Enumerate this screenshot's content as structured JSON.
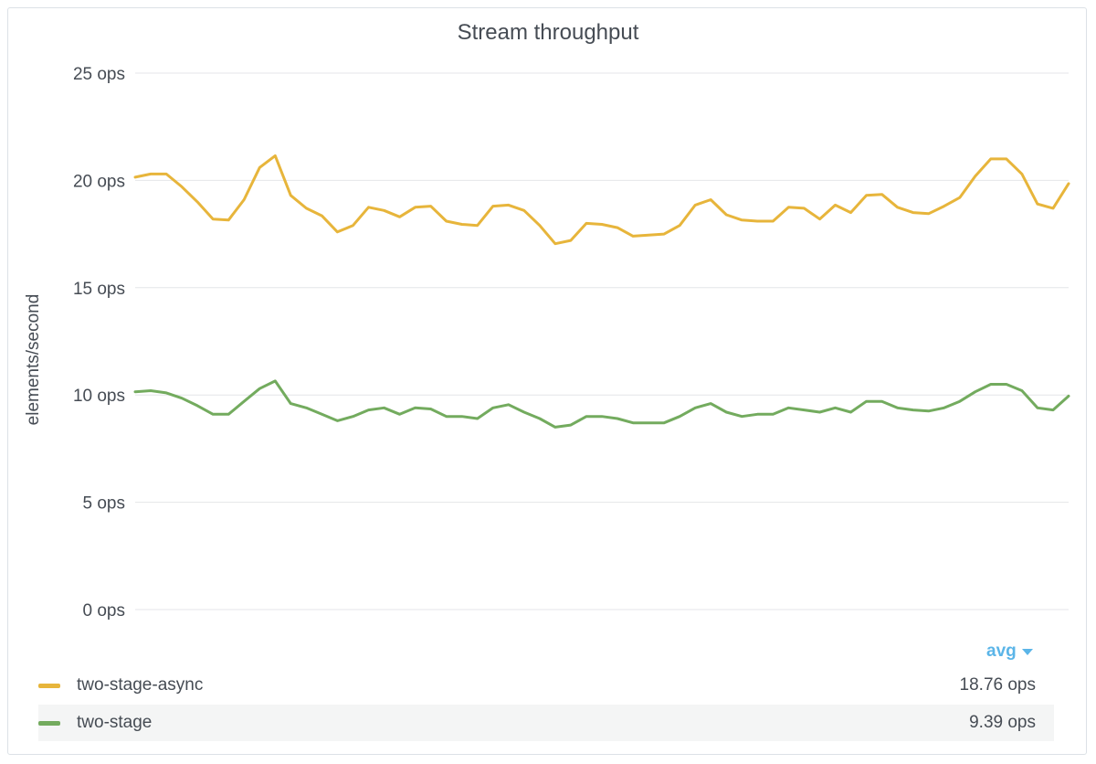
{
  "panel": {
    "title": "Stream throughput",
    "sort_label": "avg"
  },
  "colors": {
    "async": "#e7b53b",
    "sync": "#73ab5e",
    "grid": "#e4e6e8",
    "accent": "#5bb5e8"
  },
  "icons": {
    "sort": "caret-down-icon"
  },
  "chart_data": {
    "type": "line",
    "title": "Stream throughput",
    "xlabel": "",
    "ylabel": "elements/second",
    "ylim": [
      0,
      25
    ],
    "yticks": [
      "0 ops",
      "5 ops",
      "10 ops",
      "15 ops",
      "20 ops",
      "25 ops"
    ],
    "ytick_values": [
      0,
      5,
      10,
      15,
      20,
      25
    ],
    "grid": true,
    "legend_position": "bottom",
    "x": [
      0,
      1,
      2,
      3,
      4,
      5,
      6,
      7,
      8,
      9,
      10,
      11,
      12,
      13,
      14,
      15,
      16,
      17,
      18,
      19,
      20,
      21,
      22,
      23,
      24,
      25,
      26,
      27,
      28,
      29,
      30,
      31,
      32,
      33,
      34,
      35,
      36,
      37,
      38,
      39,
      40,
      41,
      42,
      43,
      44,
      45,
      46,
      47,
      48,
      49,
      50,
      51,
      52,
      53,
      54,
      55,
      56,
      57,
      58,
      59,
      60
    ],
    "series": [
      {
        "name": "two-stage-async",
        "color": "#e7b53b",
        "values": [
          20.15,
          20.3,
          20.3,
          19.7,
          19.0,
          18.2,
          18.15,
          19.1,
          20.6,
          21.15,
          19.3,
          18.7,
          18.35,
          17.6,
          17.9,
          18.75,
          18.6,
          18.3,
          18.75,
          18.8,
          18.1,
          17.95,
          17.9,
          18.8,
          18.85,
          18.6,
          17.9,
          17.05,
          17.2,
          18.0,
          17.95,
          17.8,
          17.4,
          17.45,
          17.5,
          17.9,
          18.85,
          19.1,
          18.4,
          18.15,
          18.1,
          18.1,
          18.75,
          18.7,
          18.2,
          18.85,
          18.5,
          19.3,
          19.35,
          18.75,
          18.5,
          18.45,
          18.8,
          19.2,
          20.2,
          21.0,
          21.0,
          20.3,
          18.9,
          18.7,
          19.85
        ]
      },
      {
        "name": "two-stage",
        "color": "#73ab5e",
        "values": [
          10.15,
          10.2,
          10.1,
          9.85,
          9.5,
          9.1,
          9.1,
          9.7,
          10.3,
          10.65,
          9.6,
          9.4,
          9.1,
          8.8,
          9.0,
          9.3,
          9.4,
          9.1,
          9.4,
          9.35,
          9.0,
          9.0,
          8.9,
          9.4,
          9.55,
          9.2,
          8.9,
          8.5,
          8.6,
          9.0,
          9.0,
          8.9,
          8.7,
          8.7,
          8.7,
          9.0,
          9.4,
          9.6,
          9.2,
          9.0,
          9.1,
          9.1,
          9.4,
          9.3,
          9.2,
          9.4,
          9.2,
          9.7,
          9.7,
          9.4,
          9.3,
          9.25,
          9.4,
          9.7,
          10.15,
          10.5,
          10.5,
          10.2,
          9.4,
          9.3,
          9.95
        ]
      }
    ]
  },
  "legend": [
    {
      "name": "two-stage-async",
      "value": "18.76 ops"
    },
    {
      "name": "two-stage",
      "value": "9.39 ops"
    }
  ]
}
